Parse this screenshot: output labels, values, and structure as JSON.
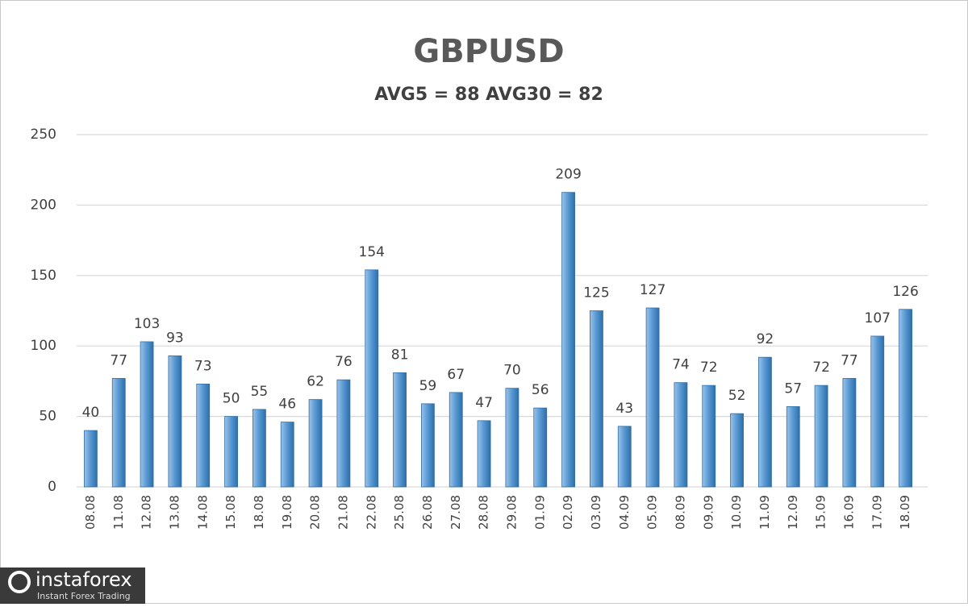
{
  "chart_data": {
    "type": "bar",
    "title": "GBPUSD",
    "subtitle": "AVG5 = 88 AVG30 = 82",
    "categories": [
      "08.08",
      "11.08",
      "12.08",
      "13.08",
      "14.08",
      "15.08",
      "18.08",
      "19.08",
      "20.08",
      "21.08",
      "22.08",
      "25.08",
      "26.08",
      "27.08",
      "28.08",
      "29.08",
      "01.09",
      "02.09",
      "03.09",
      "04.09",
      "05.09",
      "08.09",
      "09.09",
      "10.09",
      "11.09",
      "12.09",
      "15.09",
      "16.09",
      "17.09",
      "18.09"
    ],
    "values": [
      40,
      77,
      103,
      93,
      73,
      50,
      55,
      46,
      62,
      76,
      154,
      81,
      59,
      67,
      47,
      70,
      56,
      209,
      125,
      43,
      127,
      74,
      72,
      52,
      92,
      57,
      72,
      77,
      107,
      126
    ],
    "color": "#5b9bd5",
    "ylim": [
      0,
      250
    ],
    "yticks": [
      0,
      50,
      100,
      150,
      200,
      250
    ],
    "grid": true
  },
  "logo": {
    "brand": "instaforex",
    "tagline": "Instant Forex Trading"
  }
}
